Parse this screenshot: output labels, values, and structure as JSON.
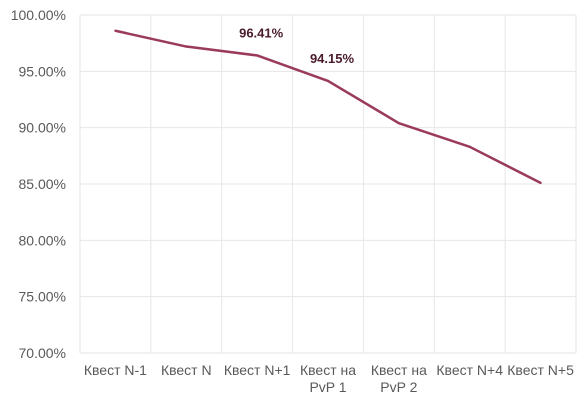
{
  "chart_data": {
    "type": "line",
    "categories": [
      "Квест N-1",
      "Квест N",
      "Квест N+1",
      "Квест на PvP 1",
      "Квест на PvP 2",
      "Квест N+4",
      "Квест N+5"
    ],
    "category_lines": [
      [
        "Квест N-1"
      ],
      [
        "Квест N"
      ],
      [
        "Квест N+1"
      ],
      [
        "Квест на",
        "PvP 1"
      ],
      [
        "Квест на",
        "PvP 2"
      ],
      [
        "Квест N+4"
      ],
      [
        "Квест N+5"
      ]
    ],
    "series": [
      {
        "values": [
          98.6,
          97.2,
          96.41,
          94.15,
          90.4,
          88.3,
          85.1
        ],
        "color": "#9b3b5a"
      }
    ],
    "data_labels": [
      {
        "index": 2,
        "text": "96.41%"
      },
      {
        "index": 3,
        "text": "94.15%"
      }
    ],
    "ylim": [
      70,
      100
    ],
    "yticks": [
      70,
      75,
      80,
      85,
      90,
      95,
      100
    ],
    "ytick_labels": [
      "70.00%",
      "75.00%",
      "80.00%",
      "85.00%",
      "90.00%",
      "95.00%",
      "100.00%"
    ],
    "grid": true,
    "legend": "none"
  }
}
